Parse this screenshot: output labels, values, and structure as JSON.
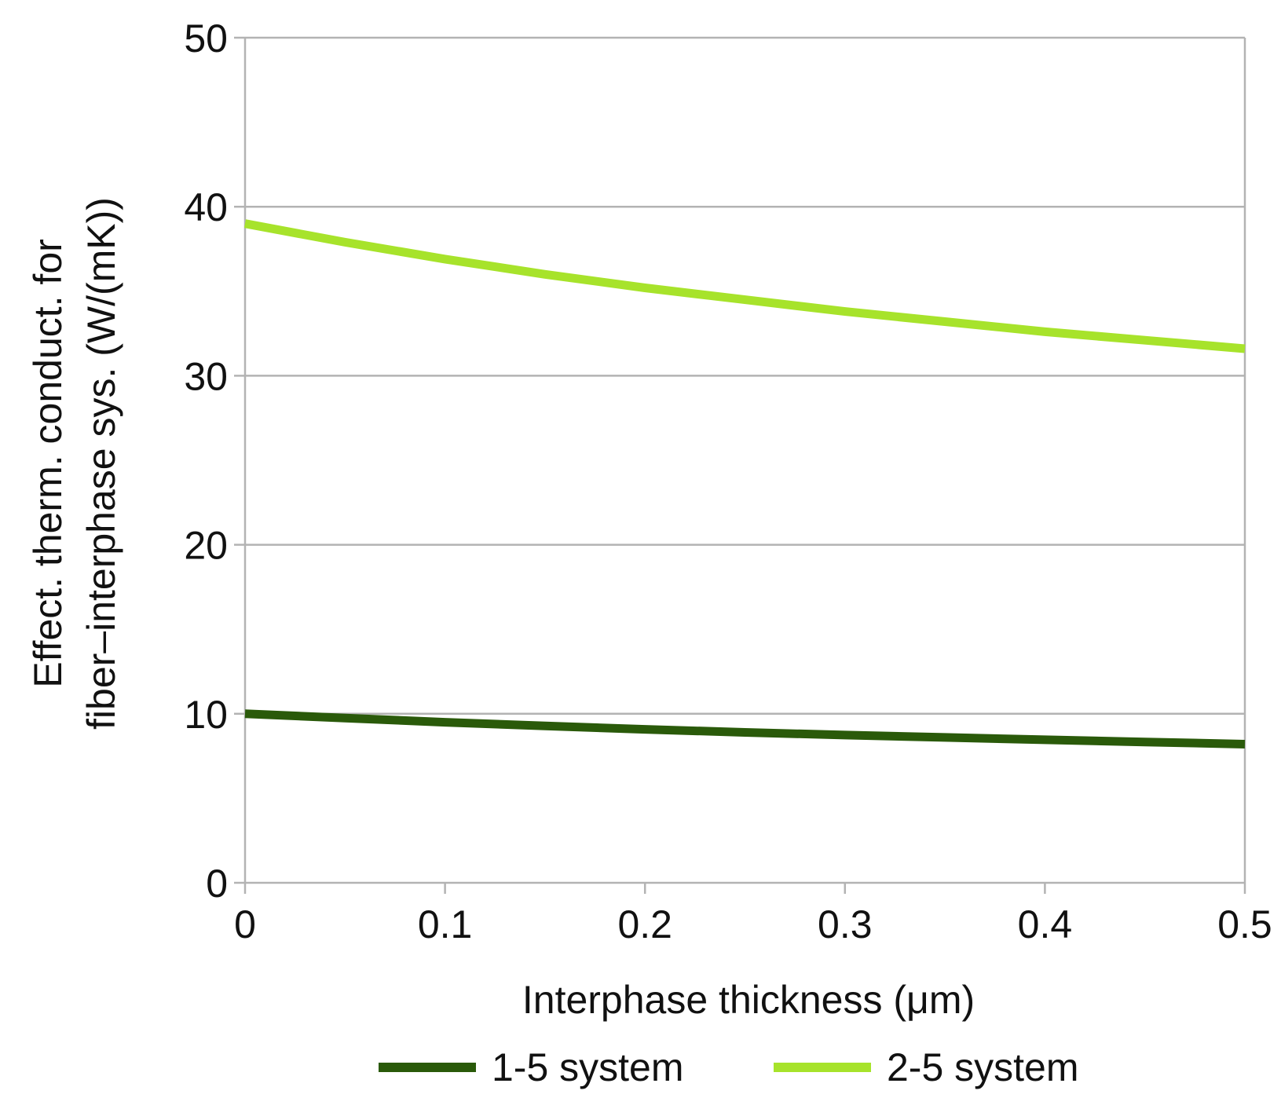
{
  "chart_data": {
    "type": "line",
    "title": "",
    "xlabel": "Interphase thickness (μm)",
    "ylabel_lines": [
      "Effect. therm. conduct. for",
      "fiber–interphase sys. (W/(mK))"
    ],
    "xlim": [
      0,
      0.5
    ],
    "ylim": [
      0,
      50
    ],
    "x_ticks": [
      0,
      0.1,
      0.2,
      0.3,
      0.4,
      0.5
    ],
    "x_tick_labels": [
      "0",
      "0.1",
      "0.2",
      "0.3",
      "0.4",
      "0.5"
    ],
    "y_ticks": [
      0,
      10,
      20,
      30,
      40,
      50
    ],
    "y_tick_labels": [
      "0",
      "10",
      "20",
      "30",
      "40",
      "50"
    ],
    "grid": "horizontal",
    "legend_position": "bottom",
    "x": [
      0,
      0.05,
      0.1,
      0.15,
      0.2,
      0.25,
      0.3,
      0.35,
      0.4,
      0.45,
      0.5
    ],
    "series": [
      {
        "name": "1-5 system",
        "color": "#2a5a0a",
        "values": [
          10.0,
          9.75,
          9.5,
          9.28,
          9.08,
          8.9,
          8.74,
          8.6,
          8.46,
          8.33,
          8.2
        ]
      },
      {
        "name": "2-5 system",
        "color": "#a7e32b",
        "values": [
          39.0,
          37.9,
          36.9,
          36.0,
          35.2,
          34.5,
          33.8,
          33.2,
          32.6,
          32.1,
          31.6
        ]
      }
    ]
  }
}
